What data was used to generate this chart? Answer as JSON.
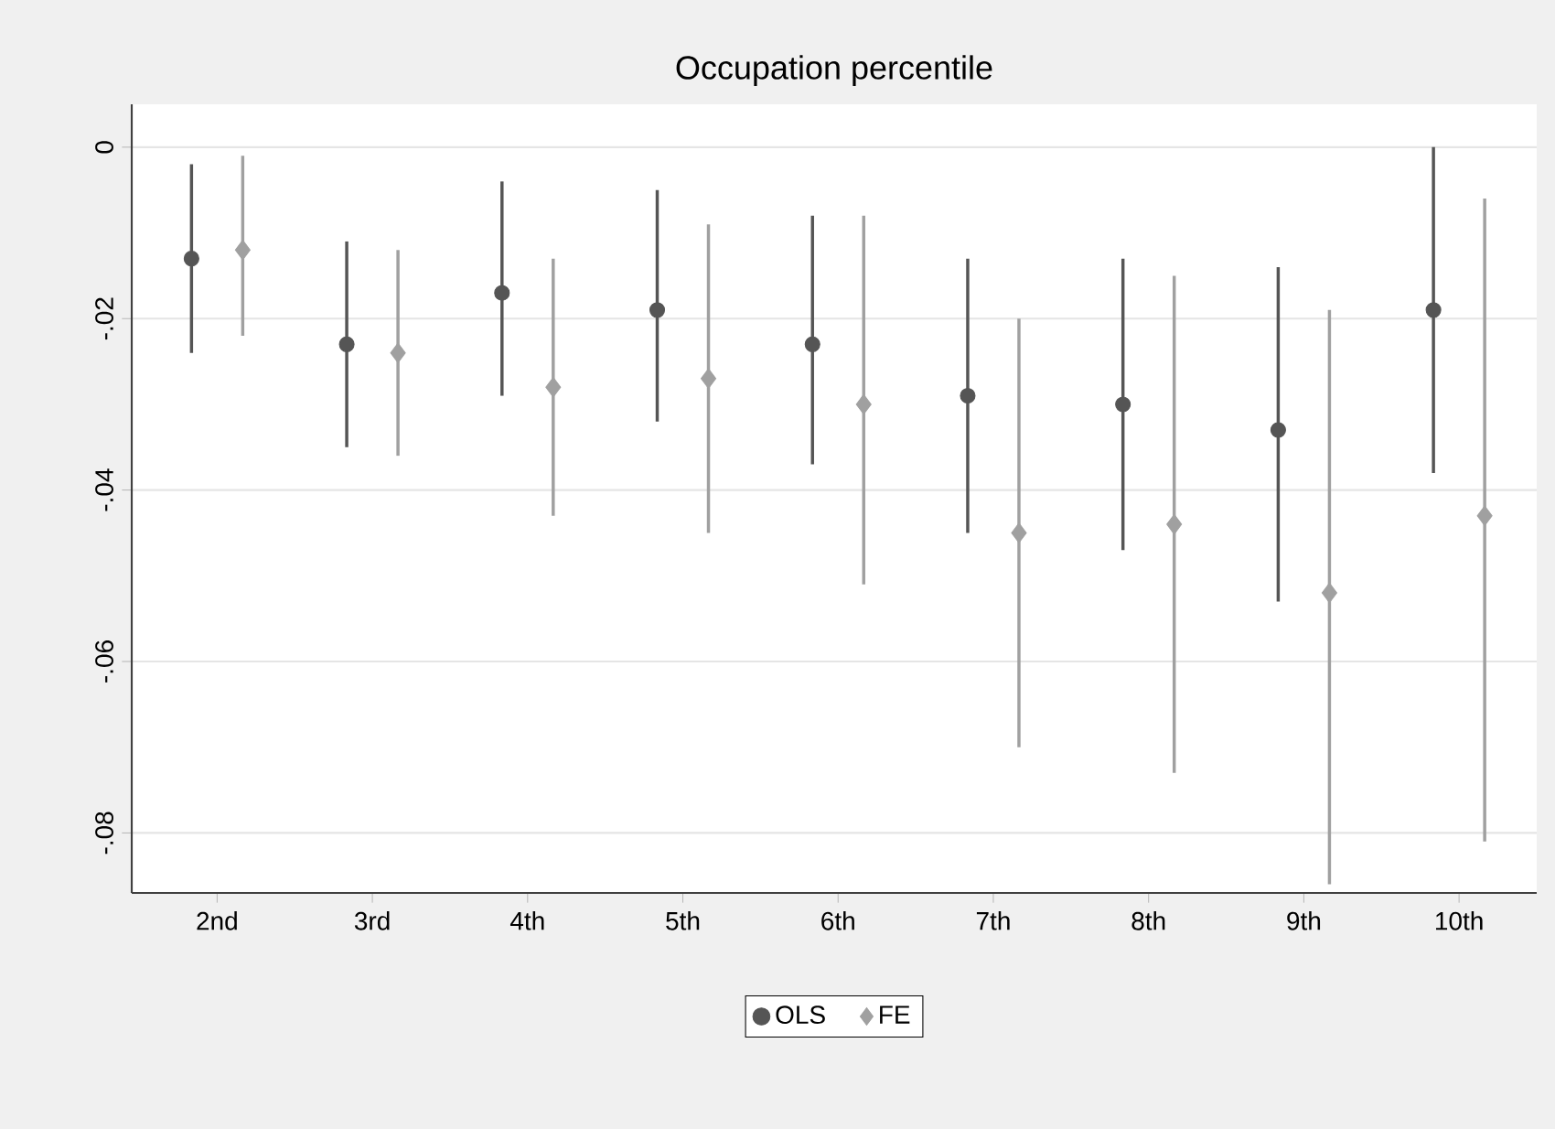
{
  "chart_data": {
    "type": "scatter",
    "title": "Occupation percentile",
    "categories": [
      "2nd",
      "3rd",
      "4th",
      "5th",
      "6th",
      "7th",
      "8th",
      "9th",
      "10th"
    ],
    "series": [
      {
        "name": "OLS",
        "color": "#555555",
        "marker": "circle",
        "values": [
          -0.013,
          -0.023,
          -0.017,
          -0.019,
          -0.023,
          -0.029,
          -0.03,
          -0.033,
          -0.019
        ],
        "errors": [
          [
            -0.024,
            -0.002
          ],
          [
            -0.035,
            -0.011
          ],
          [
            -0.029,
            -0.004
          ],
          [
            -0.032,
            -0.005
          ],
          [
            -0.037,
            -0.008
          ],
          [
            -0.045,
            -0.013
          ],
          [
            -0.047,
            -0.013
          ],
          [
            -0.053,
            -0.014
          ],
          [
            -0.038,
            0.0
          ]
        ]
      },
      {
        "name": "FE",
        "color": "#a0a0a0",
        "marker": "diamond",
        "values": [
          -0.012,
          -0.024,
          -0.028,
          -0.027,
          -0.03,
          -0.045,
          -0.044,
          -0.052,
          -0.043
        ],
        "errors": [
          [
            -0.022,
            -0.001
          ],
          [
            -0.036,
            -0.012
          ],
          [
            -0.043,
            -0.013
          ],
          [
            -0.045,
            -0.009
          ],
          [
            -0.051,
            -0.008
          ],
          [
            -0.07,
            -0.02
          ],
          [
            -0.073,
            -0.015
          ],
          [
            -0.086,
            -0.019
          ],
          [
            -0.081,
            -0.006
          ]
        ]
      }
    ],
    "ylim": [
      -0.087,
      0.005
    ],
    "yticks": [
      0,
      {
        "value": -0.02,
        "label": "-.02"
      },
      {
        "value": -0.04,
        "label": "-.04"
      },
      {
        "value": -0.06,
        "label": "-.06"
      },
      {
        "value": -0.08,
        "label": "-.08"
      }
    ],
    "grid": "y",
    "legend": "bottom"
  }
}
